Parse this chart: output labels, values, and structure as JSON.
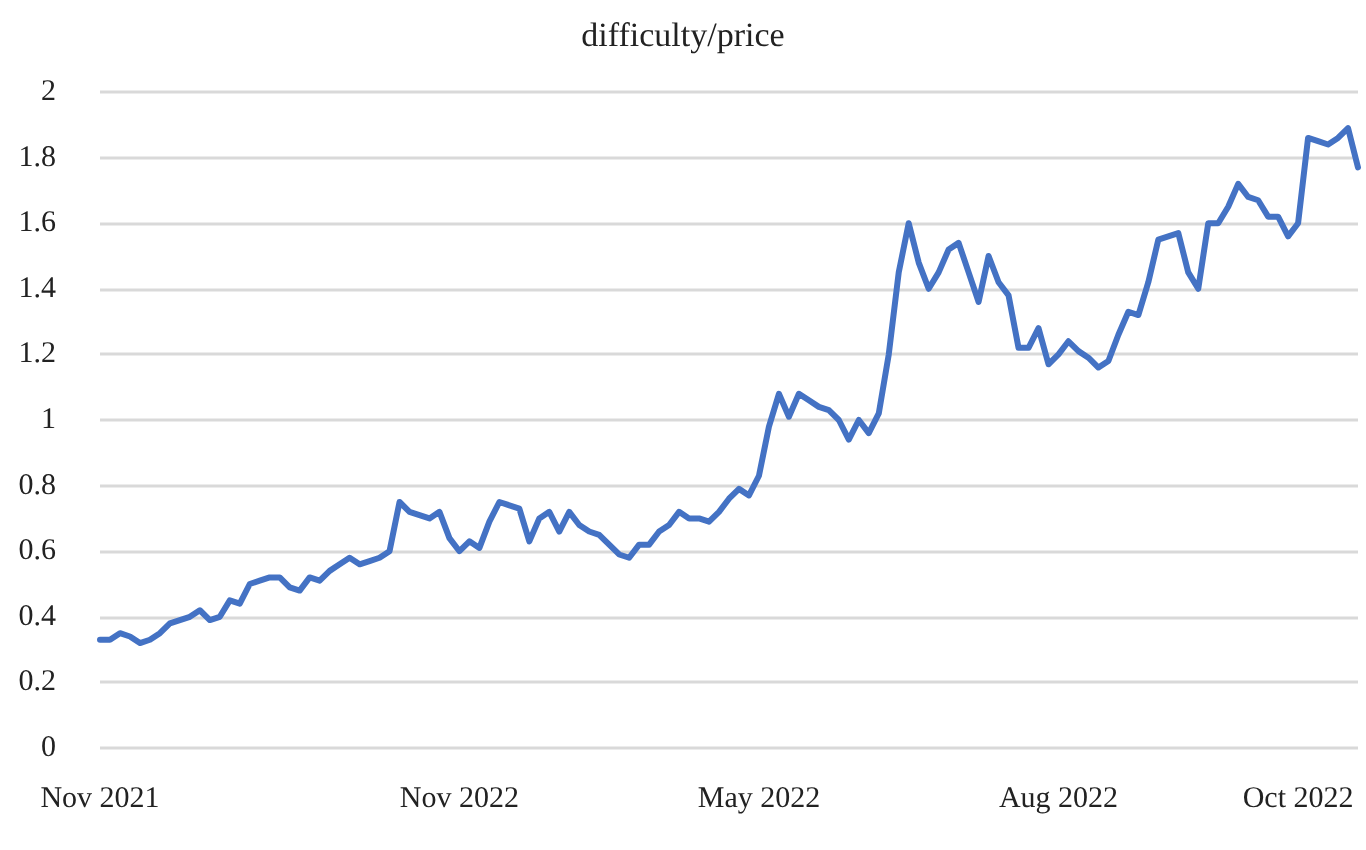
{
  "chart_data": {
    "type": "line",
    "title": "difficulty/price",
    "categories": [
      "Nov 2021",
      null,
      null,
      null,
      null,
      null,
      null,
      null,
      null,
      null,
      null,
      null,
      null,
      null,
      null,
      null,
      null,
      null,
      null,
      null,
      null,
      null,
      null,
      null,
      null,
      null,
      null,
      null,
      null,
      null,
      null,
      null,
      null,
      null,
      null,
      null,
      "Nov 2022",
      null,
      null,
      null,
      null,
      null,
      null,
      null,
      null,
      null,
      null,
      null,
      null,
      null,
      null,
      null,
      null,
      null,
      null,
      null,
      null,
      null,
      null,
      null,
      null,
      null,
      null,
      null,
      null,
      null,
      "May 2022",
      null,
      null,
      null,
      null,
      null,
      null,
      null,
      null,
      null,
      null,
      null,
      null,
      null,
      null,
      null,
      null,
      null,
      null,
      null,
      null,
      null,
      null,
      null,
      null,
      null,
      null,
      null,
      null,
      null,
      "Aug 2022",
      null,
      null,
      null,
      null,
      null,
      null,
      null,
      null,
      null,
      null,
      null,
      null,
      null,
      null,
      null,
      null,
      null,
      null,
      null,
      null,
      null,
      null,
      null,
      "Oct 2022",
      null,
      null,
      null,
      null,
      null,
      null
    ],
    "series": [
      {
        "color": "#4472c4",
        "values": [
          0.33,
          0.33,
          0.35,
          0.34,
          0.32,
          0.33,
          0.35,
          0.38,
          0.39,
          0.4,
          0.42,
          0.39,
          0.4,
          0.45,
          0.44,
          0.5,
          0.51,
          0.52,
          0.52,
          0.49,
          0.48,
          0.52,
          0.51,
          0.54,
          0.56,
          0.58,
          0.56,
          0.57,
          0.58,
          0.6,
          0.75,
          0.72,
          0.71,
          0.7,
          0.72,
          0.64,
          0.6,
          0.63,
          0.61,
          0.69,
          0.75,
          0.74,
          0.73,
          0.63,
          0.7,
          0.72,
          0.66,
          0.72,
          0.68,
          0.66,
          0.65,
          0.62,
          0.59,
          0.58,
          0.62,
          0.62,
          0.66,
          0.68,
          0.72,
          0.7,
          0.7,
          0.69,
          0.72,
          0.76,
          0.79,
          0.77,
          0.83,
          0.98,
          1.08,
          1.01,
          1.08,
          1.06,
          1.04,
          1.03,
          1.0,
          0.94,
          1.0,
          0.96,
          1.02,
          1.2,
          1.45,
          1.6,
          1.48,
          1.4,
          1.45,
          1.52,
          1.54,
          1.45,
          1.36,
          1.5,
          1.42,
          1.38,
          1.22,
          1.22,
          1.28,
          1.17,
          1.2,
          1.24,
          1.21,
          1.19,
          1.16,
          1.18,
          1.26,
          1.33,
          1.32,
          1.42,
          1.55,
          1.56,
          1.57,
          1.45,
          1.4,
          1.6,
          1.6,
          1.65,
          1.72,
          1.68,
          1.67,
          1.62,
          1.62,
          1.56,
          1.6,
          1.86,
          1.85,
          1.84,
          1.86,
          1.89,
          1.77
        ]
      }
    ],
    "ylim": [
      0,
      2
    ],
    "yticks": [
      0,
      0.2,
      0.4,
      0.6,
      0.8,
      1,
      1.2,
      1.4,
      1.6,
      1.8,
      2
    ],
    "grid": "y",
    "marker": "none",
    "line_style": "solid"
  }
}
